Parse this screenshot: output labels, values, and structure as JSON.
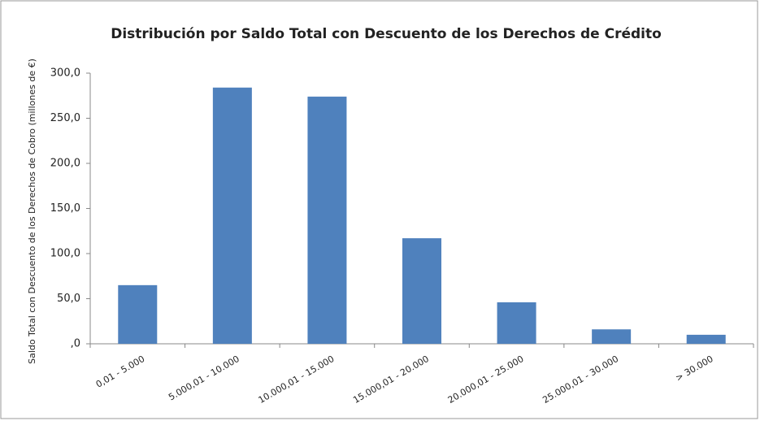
{
  "chart_data": {
    "type": "bar",
    "title": "Distribución por Saldo Total con Descuento de los Derechos de Crédito",
    "y_axis_label": "Saldo Total con Descuento de los Derechos de Cobro (millones de €)",
    "categories": [
      "0,01 - 5.000",
      "5.000,01 - 10.000",
      "10.000,01 - 15.000",
      "15.000,01 - 20.000",
      "20.000,01 - 25.000",
      "25.000,01 - 30.000",
      "> 30.000"
    ],
    "values": [
      65,
      284,
      274,
      117,
      46,
      16,
      10
    ],
    "color": "#4f81bd",
    "ylim": [
      0,
      300
    ],
    "yticks": [
      {
        "value": 0,
        "label": ",0"
      },
      {
        "value": 50,
        "label": "50,0"
      },
      {
        "value": 100,
        "label": "100,0"
      },
      {
        "value": 150,
        "label": "150,0"
      },
      {
        "value": 200,
        "label": "200,0"
      },
      {
        "value": 250,
        "label": "250,0"
      },
      {
        "value": 300,
        "label": "300,0"
      }
    ],
    "grid": false
  }
}
